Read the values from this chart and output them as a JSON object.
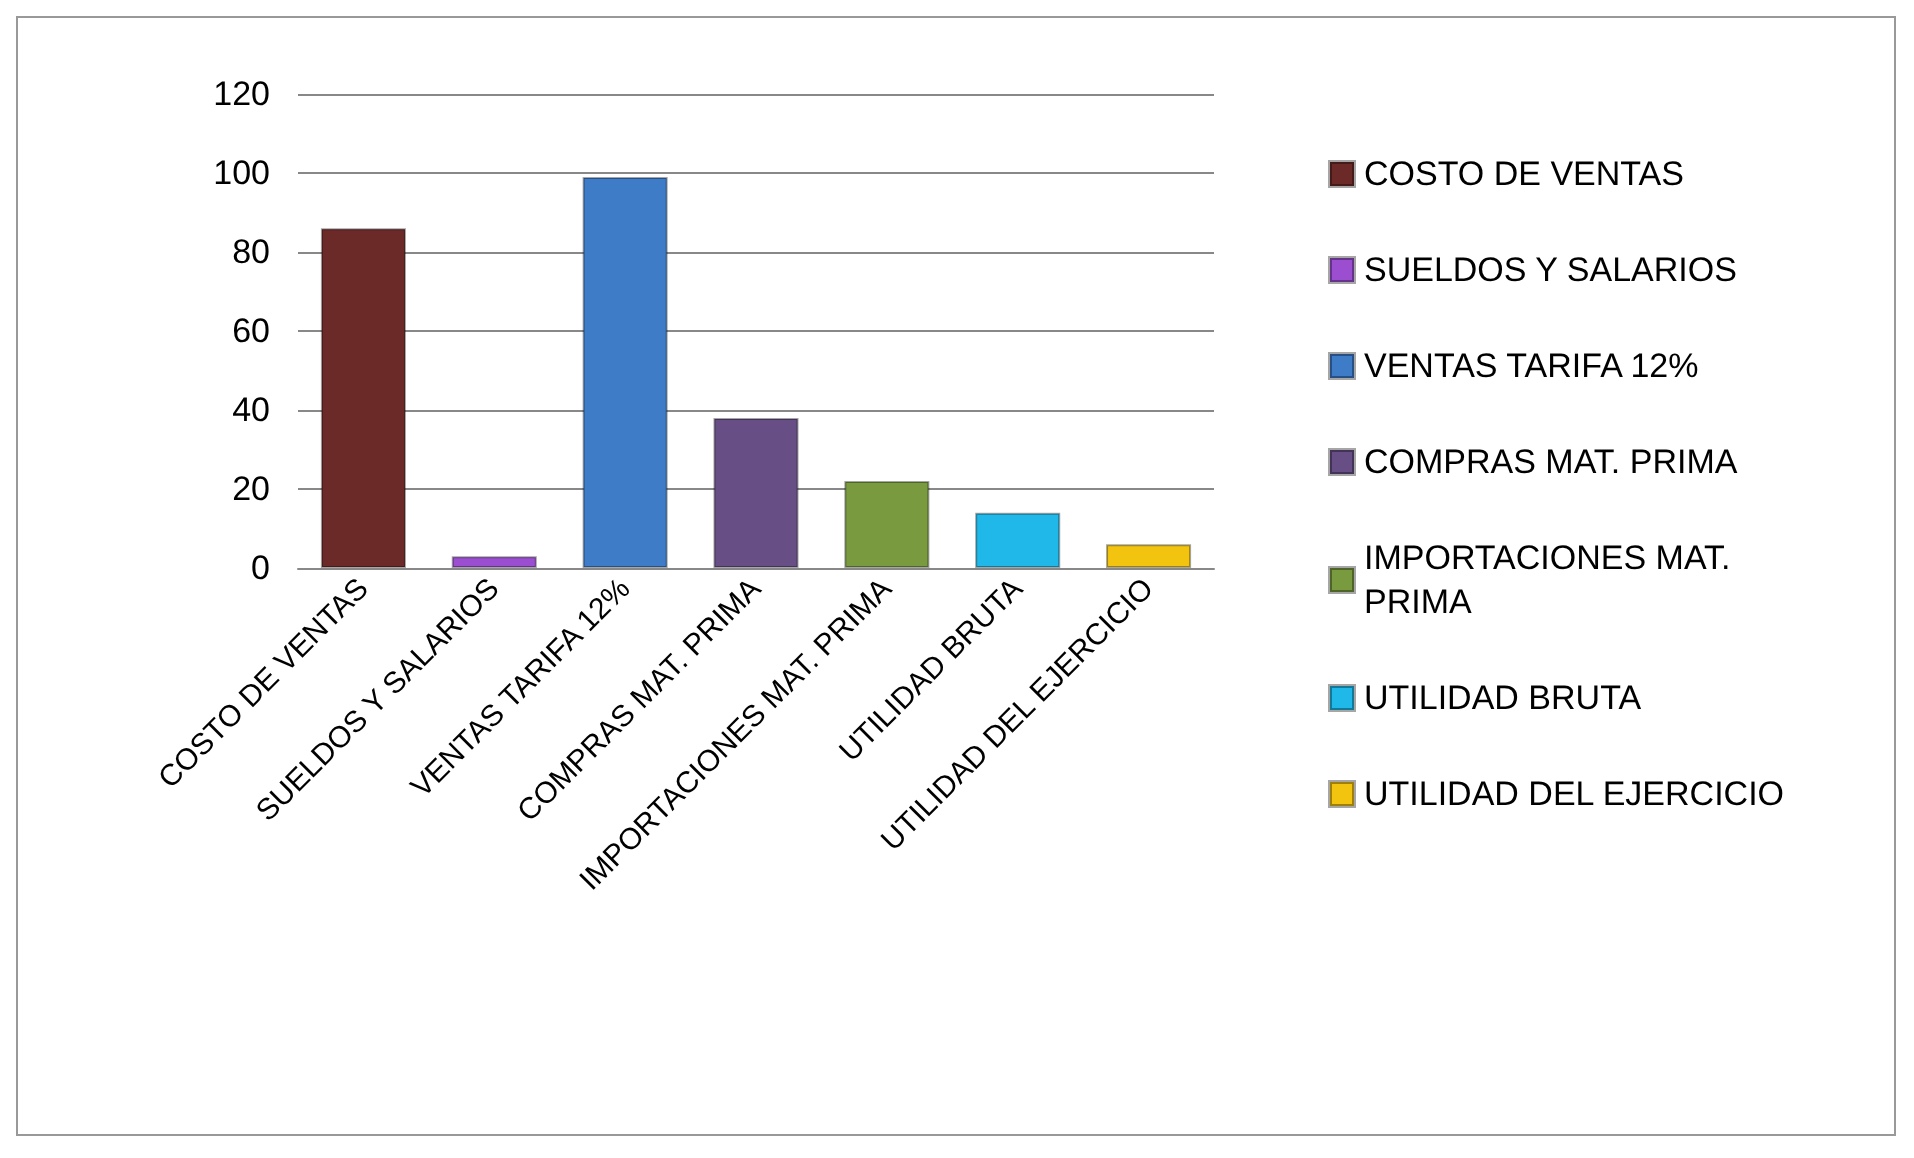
{
  "chart_data": {
    "type": "bar",
    "categories": [
      "COSTO DE VENTAS",
      "SUELDOS Y SALARIOS",
      "VENTAS TARIFA 12%",
      "COMPRAS MAT. PRIMA",
      "IMPORTACIONES MAT. PRIMA",
      "UTILIDAD BRUTA",
      "UTILIDAD DEL EJERCICIO"
    ],
    "series": [
      {
        "name": "COSTO DE VENTAS",
        "color": "#6b2a28",
        "values": [
          86,
          null,
          null,
          null,
          null,
          null,
          null
        ]
      },
      {
        "name": "SUELDOS Y SALARIOS",
        "color": "#9b4fd0",
        "values": [
          null,
          3,
          null,
          null,
          null,
          null,
          null
        ]
      },
      {
        "name": "VENTAS TARIFA 12%",
        "color": "#3f7cc8",
        "values": [
          null,
          null,
          99,
          null,
          null,
          null,
          null
        ]
      },
      {
        "name": "COMPRAS MAT. PRIMA",
        "color": "#674f85",
        "values": [
          null,
          null,
          null,
          38,
          null,
          null,
          null
        ]
      },
      {
        "name": "IMPORTACIONES MAT. PRIMA",
        "color": "#7a9a3f",
        "values": [
          null,
          null,
          null,
          null,
          22,
          null,
          null
        ]
      },
      {
        "name": "UTILIDAD BRUTA",
        "color": "#1fb8e8",
        "values": [
          null,
          null,
          null,
          null,
          null,
          14,
          null
        ]
      },
      {
        "name": "UTILIDAD DEL EJERCICIO",
        "color": "#f2c40f",
        "values": [
          null,
          null,
          null,
          null,
          null,
          null,
          6
        ]
      }
    ],
    "ylim": [
      0,
      120
    ],
    "yticks": [
      0,
      20,
      40,
      60,
      80,
      100,
      120
    ],
    "grid": "y",
    "legend": "right"
  }
}
